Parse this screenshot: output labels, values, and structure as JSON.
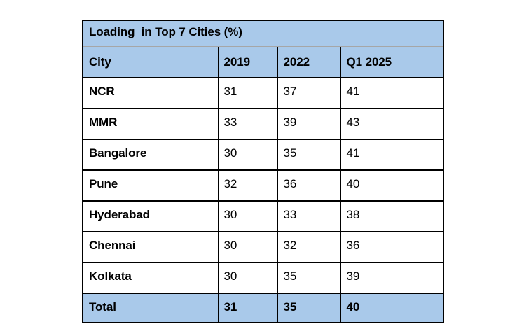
{
  "page": {
    "background": "#ffffff"
  },
  "colors": {
    "header_bg": "#A9C9EA",
    "row_bg": "#ffffff",
    "border": "#000000",
    "title_divider": "#A6A6A6",
    "text": "#000000"
  },
  "table": {
    "title": "Loading  in Top 7 Cities (%)",
    "header": [
      "City",
      "2019",
      "2022",
      "Q1 2025"
    ],
    "rows": [
      [
        "NCR",
        "31",
        "37",
        "41"
      ],
      [
        "MMR",
        "33",
        "39",
        "43"
      ],
      [
        "Bangalore",
        "30",
        "35",
        "41"
      ],
      [
        "Pune",
        "32",
        "36",
        "40"
      ],
      [
        "Hyderabad",
        "30",
        "33",
        "38"
      ],
      [
        "Chennai",
        "30",
        "32",
        "36"
      ],
      [
        "Kolkata",
        "30",
        "35",
        "39"
      ]
    ],
    "total_row": [
      "Total",
      "31",
      "35",
      "40"
    ]
  },
  "chart_data": {
    "type": "table",
    "title": "Loading in Top 7 Cities (%)",
    "unit": "%",
    "categories": [
      "NCR",
      "MMR",
      "Bangalore",
      "Pune",
      "Hyderabad",
      "Chennai",
      "Kolkata",
      "Total"
    ],
    "series": [
      {
        "name": "2019",
        "values": [
          31,
          33,
          30,
          32,
          30,
          30,
          30,
          31
        ]
      },
      {
        "name": "2022",
        "values": [
          37,
          39,
          35,
          36,
          33,
          32,
          35,
          35
        ]
      },
      {
        "name": "Q1 2025",
        "values": [
          41,
          43,
          41,
          40,
          38,
          36,
          39,
          40
        ]
      }
    ]
  }
}
